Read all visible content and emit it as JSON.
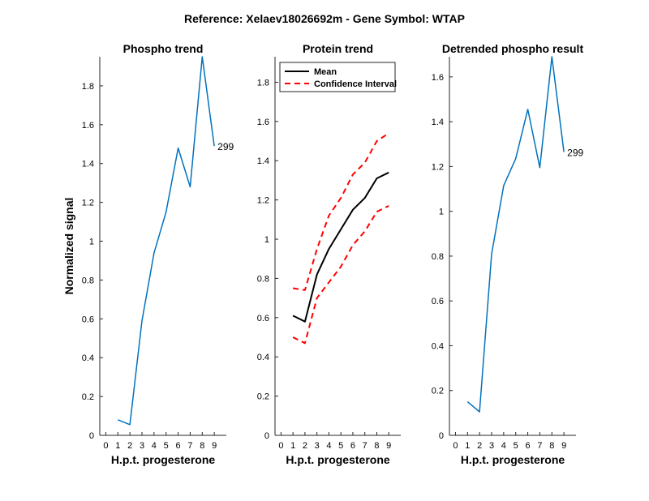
{
  "figure": {
    "suptitle": "Reference:  Xelaev18026692m - Gene Symbol:  WTAP"
  },
  "chart_data": [
    {
      "type": "line",
      "title": "Phospho trend",
      "xlabel": "H.p.t. progesterone",
      "ylabel": "Normalized signal",
      "x": [
        1,
        2,
        3,
        4,
        5,
        6,
        7,
        8,
        9
      ],
      "xticks": [
        0,
        1,
        2,
        3,
        4,
        5,
        6,
        7,
        8,
        9
      ],
      "xlim": [
        -0.5,
        10
      ],
      "ylim": [
        0,
        1.95
      ],
      "yticks": [
        0,
        0.2,
        0.4,
        0.6,
        0.8,
        1,
        1.2,
        1.4,
        1.6,
        1.8
      ],
      "series": [
        {
          "values": [
            0.08,
            0.055,
            0.59,
            0.94,
            1.15,
            1.48,
            1.28,
            1.95,
            1.49
          ],
          "color": "#0072BD",
          "style": "solid",
          "width": 1.5
        }
      ],
      "annotation": {
        "text": "299",
        "x": 9,
        "y": 1.49
      }
    },
    {
      "type": "line",
      "title": "Protein trend",
      "xlabel": "H.p.t. progesterone",
      "ylabel": "",
      "x": [
        1,
        2,
        3,
        4,
        5,
        6,
        7,
        8,
        9
      ],
      "xticks": [
        0,
        1,
        2,
        3,
        4,
        5,
        6,
        7,
        8,
        9
      ],
      "xlim": [
        -0.5,
        10
      ],
      "ylim": [
        0,
        1.93
      ],
      "yticks": [
        0,
        0.2,
        0.4,
        0.6,
        0.8,
        1,
        1.2,
        1.4,
        1.6,
        1.8
      ],
      "series": [
        {
          "name": "Mean",
          "values": [
            0.61,
            0.58,
            0.82,
            0.95,
            1.05,
            1.15,
            1.21,
            1.31,
            1.34
          ],
          "color": "#000000",
          "style": "solid",
          "width": 2
        },
        {
          "name": "Confidence Interval",
          "values": [
            0.75,
            0.74,
            0.95,
            1.12,
            1.21,
            1.33,
            1.39,
            1.5,
            1.54
          ],
          "color": "#FF0000",
          "style": "dashed",
          "width": 2
        },
        {
          "values": [
            0.5,
            0.47,
            0.7,
            0.78,
            0.86,
            0.97,
            1.04,
            1.14,
            1.17
          ],
          "color": "#FF0000",
          "style": "dashed",
          "width": 2
        }
      ],
      "legend": {
        "placement": "top-left",
        "entries": [
          "Mean",
          "Confidence Interval"
        ]
      }
    },
    {
      "type": "line",
      "title": "Detrended phospho result",
      "xlabel": "H.p.t. progesterone",
      "ylabel": "",
      "x": [
        1,
        2,
        3,
        4,
        5,
        6,
        7,
        8,
        9
      ],
      "xticks": [
        0,
        1,
        2,
        3,
        4,
        5,
        6,
        7,
        8,
        9
      ],
      "xlim": [
        -0.5,
        10
      ],
      "ylim": [
        0,
        1.69
      ],
      "yticks": [
        0,
        0.2,
        0.4,
        0.6,
        0.8,
        1,
        1.2,
        1.4,
        1.6
      ],
      "series": [
        {
          "values": [
            0.15,
            0.105,
            0.81,
            1.115,
            1.235,
            1.455,
            1.195,
            1.69,
            1.265
          ],
          "color": "#0072BD",
          "style": "solid",
          "width": 1.5
        }
      ],
      "annotation": {
        "text": "299",
        "x": 9,
        "y": 1.265
      }
    }
  ]
}
